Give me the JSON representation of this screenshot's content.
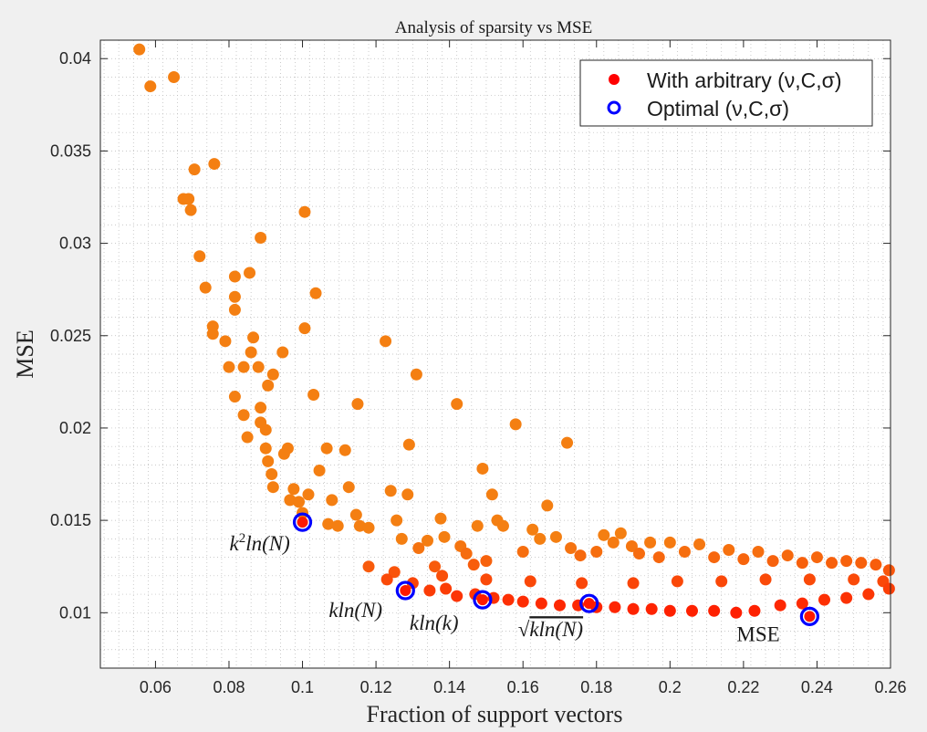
{
  "chart_data": {
    "type": "scatter",
    "title": "Analysis of sparsity vs MSE",
    "xlabel": "Fraction of support vectors",
    "ylabel": "MSE",
    "xlim": [
      0.045,
      0.26
    ],
    "ylim": [
      0.007,
      0.041
    ],
    "grid": "minor dotted",
    "legend_position": "top-right",
    "x_ticks": [
      {
        "value": 0.06,
        "label": "0.06"
      },
      {
        "value": 0.08,
        "label": "0.08"
      },
      {
        "value": 0.1,
        "label": "0.1"
      },
      {
        "value": 0.12,
        "label": "0.12"
      },
      {
        "value": 0.14,
        "label": "0.14"
      },
      {
        "value": 0.16,
        "label": "0.16"
      },
      {
        "value": 0.18,
        "label": "0.18"
      },
      {
        "value": 0.2,
        "label": "0.2"
      },
      {
        "value": 0.22,
        "label": "0.22"
      },
      {
        "value": 0.24,
        "label": "0.24"
      },
      {
        "value": 0.26,
        "label": "0.26"
      }
    ],
    "y_ticks": [
      {
        "value": 0.01,
        "label": "0.01"
      },
      {
        "value": 0.015,
        "label": "0.015"
      },
      {
        "value": 0.02,
        "label": "0.02"
      },
      {
        "value": 0.025,
        "label": "0.025"
      },
      {
        "value": 0.03,
        "label": "0.03"
      },
      {
        "value": 0.035,
        "label": "0.035"
      },
      {
        "value": 0.04,
        "label": "0.04"
      }
    ],
    "series": [
      {
        "name": "With arbitrary (ν,C,σ)",
        "marker": "filled-circle",
        "color_low": "#ff1a00",
        "color_high": "#f47f12",
        "points": [
          [
            0.0556,
            0.0405
          ],
          [
            0.0586,
            0.0385
          ],
          [
            0.065,
            0.039
          ],
          [
            0.0676,
            0.0324
          ],
          [
            0.069,
            0.0324
          ],
          [
            0.0696,
            0.0318
          ],
          [
            0.0706,
            0.034
          ],
          [
            0.072,
            0.0293
          ],
          [
            0.0736,
            0.0276
          ],
          [
            0.076,
            0.0343
          ],
          [
            0.0756,
            0.0255
          ],
          [
            0.0756,
            0.0251
          ],
          [
            0.079,
            0.0247
          ],
          [
            0.08,
            0.0233
          ],
          [
            0.0816,
            0.0282
          ],
          [
            0.0816,
            0.0271
          ],
          [
            0.0816,
            0.0264
          ],
          [
            0.0816,
            0.0217
          ],
          [
            0.084,
            0.0233
          ],
          [
            0.084,
            0.0207
          ],
          [
            0.085,
            0.0195
          ],
          [
            0.0856,
            0.0284
          ],
          [
            0.086,
            0.0241
          ],
          [
            0.0866,
            0.0249
          ],
          [
            0.088,
            0.0233
          ],
          [
            0.0886,
            0.0303
          ],
          [
            0.0886,
            0.0211
          ],
          [
            0.0886,
            0.0203
          ],
          [
            0.09,
            0.0199
          ],
          [
            0.09,
            0.0189
          ],
          [
            0.0906,
            0.0223
          ],
          [
            0.0906,
            0.0182
          ],
          [
            0.0916,
            0.0175
          ],
          [
            0.092,
            0.0229
          ],
          [
            0.092,
            0.0168
          ],
          [
            0.0946,
            0.0241
          ],
          [
            0.095,
            0.0186
          ],
          [
            0.096,
            0.0189
          ],
          [
            0.0966,
            0.0161
          ],
          [
            0.0976,
            0.0167
          ],
          [
            0.099,
            0.016
          ],
          [
            0.1,
            0.0154
          ],
          [
            0.1006,
            0.0317
          ],
          [
            0.1006,
            0.0254
          ],
          [
            0.1016,
            0.0164
          ],
          [
            0.103,
            0.0218
          ],
          [
            0.1036,
            0.0273
          ],
          [
            0.1046,
            0.0177
          ],
          [
            0.1066,
            0.0189
          ],
          [
            0.107,
            0.0148
          ],
          [
            0.108,
            0.0161
          ],
          [
            0.1096,
            0.0147
          ],
          [
            0.1116,
            0.0188
          ],
          [
            0.1126,
            0.0168
          ],
          [
            0.1146,
            0.0153
          ],
          [
            0.115,
            0.0213
          ],
          [
            0.1156,
            0.0147
          ],
          [
            0.118,
            0.0146
          ],
          [
            0.1226,
            0.0247
          ],
          [
            0.124,
            0.0166
          ],
          [
            0.1256,
            0.015
          ],
          [
            0.127,
            0.014
          ],
          [
            0.1286,
            0.0164
          ],
          [
            0.129,
            0.0191
          ],
          [
            0.131,
            0.0229
          ],
          [
            0.1316,
            0.0135
          ],
          [
            0.134,
            0.0139
          ],
          [
            0.136,
            0.0125
          ],
          [
            0.1376,
            0.0151
          ],
          [
            0.1386,
            0.0141
          ],
          [
            0.142,
            0.0213
          ],
          [
            0.143,
            0.0136
          ],
          [
            0.1446,
            0.0132
          ],
          [
            0.1466,
            0.0126
          ],
          [
            0.1476,
            0.0147
          ],
          [
            0.149,
            0.0178
          ],
          [
            0.15,
            0.0128
          ],
          [
            0.1516,
            0.0164
          ],
          [
            0.153,
            0.015
          ],
          [
            0.1546,
            0.0147
          ],
          [
            0.158,
            0.0202
          ],
          [
            0.16,
            0.0133
          ],
          [
            0.1626,
            0.0145
          ],
          [
            0.1646,
            0.014
          ],
          [
            0.1666,
            0.0158
          ],
          [
            0.169,
            0.0141
          ],
          [
            0.172,
            0.0192
          ],
          [
            0.173,
            0.0135
          ],
          [
            0.1756,
            0.0131
          ],
          [
            0.18,
            0.0133
          ],
          [
            0.182,
            0.0142
          ],
          [
            0.1846,
            0.0138
          ],
          [
            0.1866,
            0.0143
          ],
          [
            0.1896,
            0.0136
          ],
          [
            0.1916,
            0.0132
          ],
          [
            0.1946,
            0.0138
          ],
          [
            0.197,
            0.013
          ],
          [
            0.2,
            0.0138
          ],
          [
            0.204,
            0.0133
          ],
          [
            0.208,
            0.0137
          ],
          [
            0.212,
            0.013
          ],
          [
            0.216,
            0.0134
          ],
          [
            0.22,
            0.0129
          ],
          [
            0.224,
            0.0133
          ],
          [
            0.228,
            0.0128
          ],
          [
            0.232,
            0.0131
          ],
          [
            0.236,
            0.0127
          ],
          [
            0.24,
            0.013
          ],
          [
            0.244,
            0.0127
          ],
          [
            0.248,
            0.0128
          ],
          [
            0.252,
            0.0127
          ],
          [
            0.256,
            0.0126
          ],
          [
            0.2596,
            0.0123
          ],
          [
            0.118,
            0.0125
          ],
          [
            0.123,
            0.0118
          ],
          [
            0.13,
            0.0116
          ],
          [
            0.1346,
            0.0112
          ],
          [
            0.139,
            0.0113
          ],
          [
            0.142,
            0.0109
          ],
          [
            0.147,
            0.011
          ],
          [
            0.152,
            0.0108
          ],
          [
            0.156,
            0.0107
          ],
          [
            0.16,
            0.0106
          ],
          [
            0.165,
            0.0105
          ],
          [
            0.17,
            0.0104
          ],
          [
            0.175,
            0.0104
          ],
          [
            0.18,
            0.0103
          ],
          [
            0.185,
            0.0103
          ],
          [
            0.19,
            0.0102
          ],
          [
            0.195,
            0.0102
          ],
          [
            0.2,
            0.0101
          ],
          [
            0.206,
            0.0101
          ],
          [
            0.212,
            0.0101
          ],
          [
            0.218,
            0.01
          ],
          [
            0.223,
            0.0101
          ],
          [
            0.23,
            0.0104
          ],
          [
            0.236,
            0.0105
          ],
          [
            0.242,
            0.0107
          ],
          [
            0.248,
            0.0108
          ],
          [
            0.254,
            0.011
          ],
          [
            0.2596,
            0.0113
          ],
          [
            0.125,
            0.0122
          ],
          [
            0.138,
            0.012
          ],
          [
            0.15,
            0.0118
          ],
          [
            0.162,
            0.0117
          ],
          [
            0.176,
            0.0116
          ],
          [
            0.19,
            0.0116
          ],
          [
            0.202,
            0.0117
          ],
          [
            0.214,
            0.0117
          ],
          [
            0.226,
            0.0118
          ],
          [
            0.238,
            0.0118
          ],
          [
            0.25,
            0.0118
          ],
          [
            0.258,
            0.0117
          ]
        ]
      },
      {
        "name": "Optimal (ν,C,σ)",
        "marker": "open-circle",
        "color": "#0000ff",
        "points": [
          [
            0.1,
            0.0149,
            "k2lnN"
          ],
          [
            0.128,
            0.0112,
            "klnN"
          ],
          [
            0.149,
            0.0107,
            "klnk"
          ],
          [
            0.178,
            0.0105,
            "sqrtklnN"
          ],
          [
            0.238,
            0.0098,
            "mse"
          ]
        ]
      }
    ],
    "annotations": [
      {
        "id": "k2lnN",
        "text_parts": [
          "k",
          "2",
          "ln(N)"
        ],
        "x": 0.1,
        "y": 0.0149
      },
      {
        "id": "klnN",
        "text": "kln(N)",
        "x": 0.128,
        "y": 0.0112
      },
      {
        "id": "klnk",
        "text": "kln(k)",
        "x": 0.149,
        "y": 0.0107
      },
      {
        "id": "sqrtklnN",
        "text_parts": [
          "√",
          "kln(N)"
        ],
        "x": 0.178,
        "y": 0.0105
      },
      {
        "id": "mse",
        "text": "MSE",
        "x": 0.238,
        "y": 0.0098
      }
    ]
  }
}
